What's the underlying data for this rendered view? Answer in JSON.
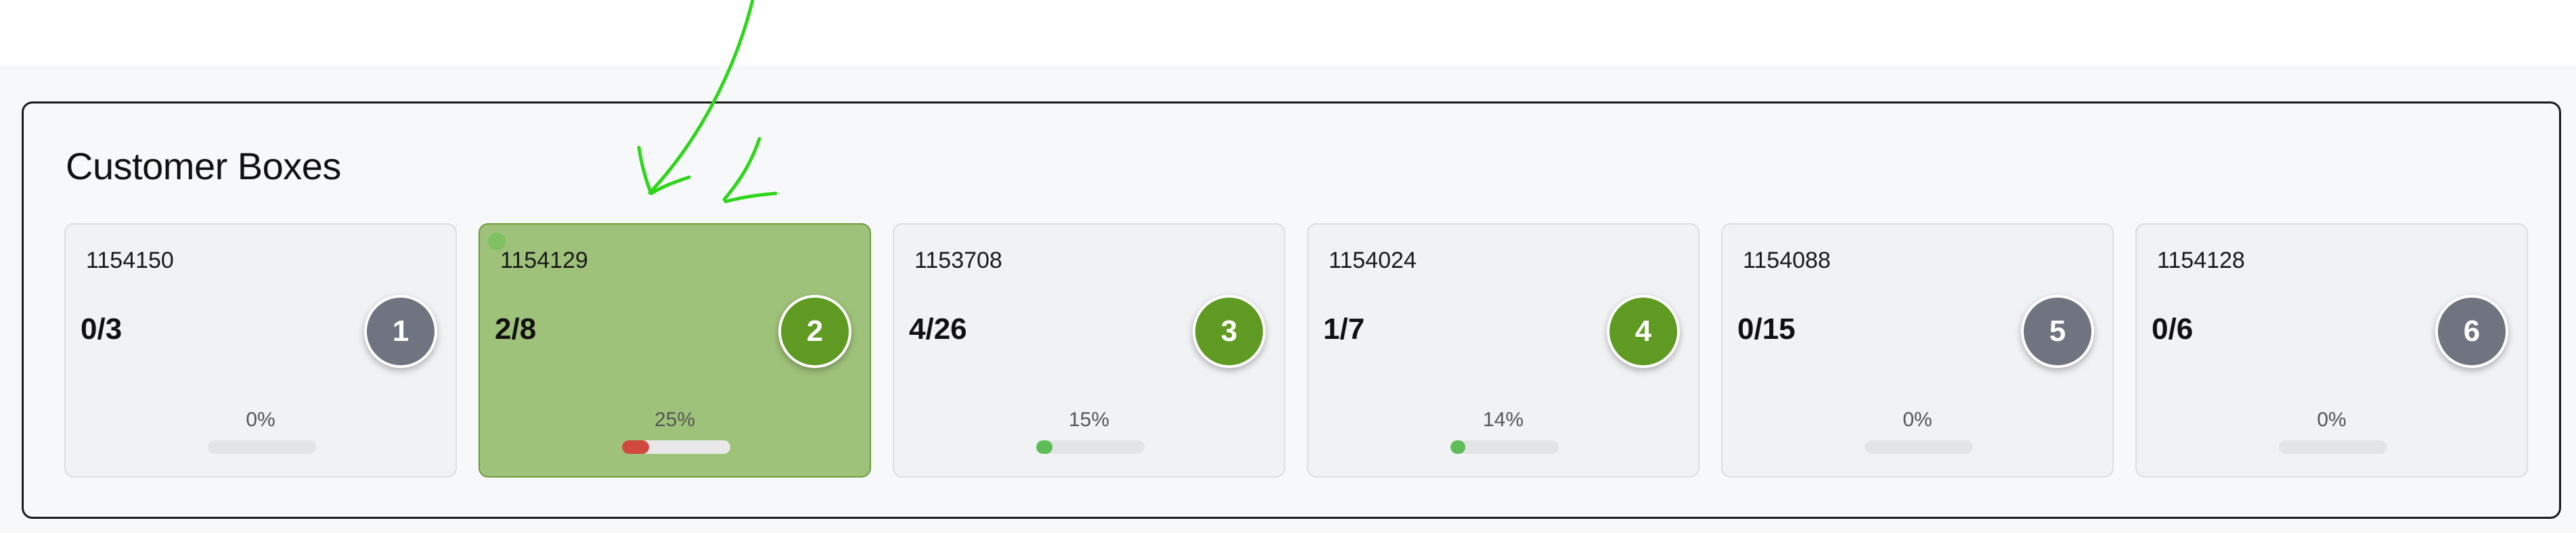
{
  "panel": {
    "title": "Customer Boxes"
  },
  "colors": {
    "selected_background": "#9fc27a",
    "badge_gray": "#6f7480",
    "badge_green": "#5f9a22",
    "progress_red": "#cf4a3d",
    "progress_green": "#5ebd58",
    "annotation_stroke": "#2ed61a"
  },
  "boxes": [
    {
      "id": "1154150",
      "count": "0/3",
      "number": "1",
      "percent": "0%",
      "progress": 0,
      "badge_color": "gray",
      "selected": false
    },
    {
      "id": "1154129",
      "count": "2/8",
      "number": "2",
      "percent": "25%",
      "progress": 0.25,
      "badge_color": "green",
      "selected": true
    },
    {
      "id": "1153708",
      "count": "4/26",
      "number": "3",
      "percent": "15%",
      "progress": 0.15,
      "badge_color": "green",
      "selected": false
    },
    {
      "id": "1154024",
      "count": "1/7",
      "number": "4",
      "percent": "14%",
      "progress": 0.14,
      "badge_color": "green",
      "selected": false
    },
    {
      "id": "1154088",
      "count": "0/15",
      "number": "5",
      "percent": "0%",
      "progress": 0,
      "badge_color": "gray",
      "selected": false
    },
    {
      "id": "1154128",
      "count": "0/6",
      "number": "6",
      "percent": "0%",
      "progress": 0,
      "badge_color": "gray",
      "selected": false
    }
  ]
}
